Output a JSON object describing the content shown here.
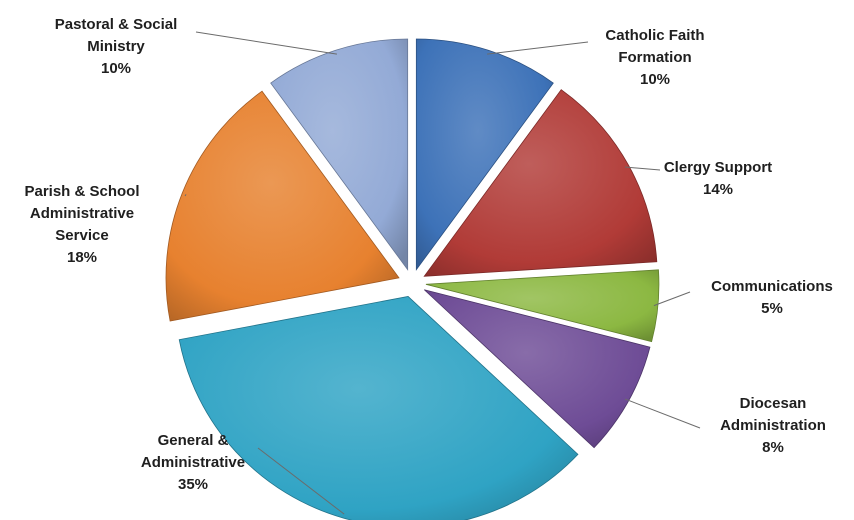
{
  "chart_data": {
    "type": "pie",
    "exploded": true,
    "slices": [
      {
        "name": "Catholic Faith Formation",
        "label_lines": [
          "Catholic Faith",
          "Formation"
        ],
        "value": 10,
        "pct_label": "10%",
        "color": "#3d72b8"
      },
      {
        "name": "Clergy Support",
        "label_lines": [
          "Clergy Support"
        ],
        "value": 14,
        "pct_label": "14%",
        "color": "#b13b37"
      },
      {
        "name": "Communications",
        "label_lines": [
          "Communications"
        ],
        "value": 5,
        "pct_label": "5%",
        "color": "#8cb842"
      },
      {
        "name": "Diocesan Administration",
        "label_lines": [
          "Diocesan",
          "Administration"
        ],
        "value": 8,
        "pct_label": "8%",
        "color": "#6e4c96"
      },
      {
        "name": "General & Administrative",
        "label_lines": [
          "General &",
          "Administrative"
        ],
        "value": 35,
        "pct_label": "35%",
        "color": "#2fa3c4"
      },
      {
        "name": "Parish & School Administrative Service",
        "label_lines": [
          "Parish & School",
          "Administrative",
          "Service"
        ],
        "value": 18,
        "pct_label": "18%",
        "color": "#e7812f"
      },
      {
        "name": "Pastoral & Social Ministry",
        "label_lines": [
          "Pastoral & Social",
          "Ministry"
        ],
        "value": 10,
        "pct_label": "10%",
        "color": "#93aad6"
      }
    ]
  }
}
